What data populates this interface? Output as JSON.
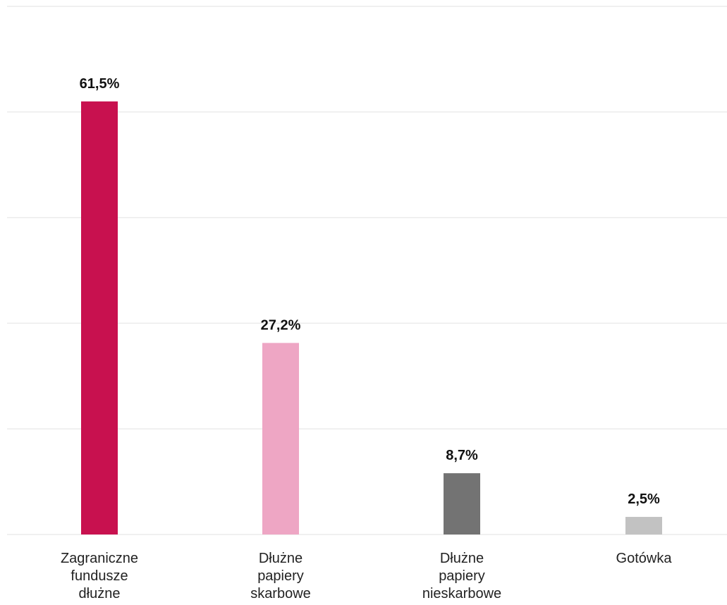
{
  "chart_data": {
    "type": "bar",
    "categories": [
      [
        "Zagraniczne",
        "fundusze",
        "dłużne"
      ],
      [
        "Dłużne",
        "papiery",
        "skarbowe"
      ],
      [
        "Dłużne",
        "papiery",
        "nieskarbowe"
      ],
      [
        "Gotówka"
      ]
    ],
    "values": [
      61.5,
      27.2,
      8.7,
      2.5
    ],
    "value_labels": [
      "61,5%",
      "27,2%",
      "8,7%",
      "2,5%"
    ],
    "colors": [
      "#c8114f",
      "#eea6c4",
      "#737373",
      "#c2c2c2"
    ],
    "ylim": [
      0,
      75
    ],
    "y_gridlines": [
      0,
      15,
      30,
      45,
      60,
      75
    ],
    "grid": true,
    "title": "",
    "xlabel": "",
    "ylabel": ""
  }
}
